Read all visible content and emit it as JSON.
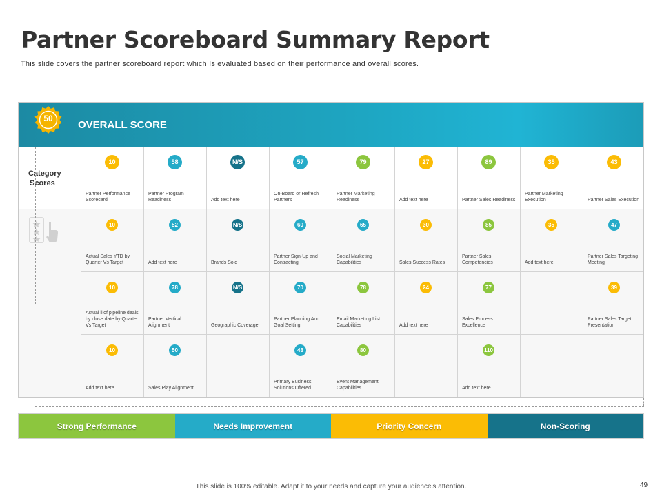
{
  "header": {
    "title": "Partner Scoreboard Summary Report",
    "subtitle": "This slide covers the partner scoreboard report which Is evaluated  based on their performance  and overall  scores."
  },
  "overall": {
    "label": "OVERALL SCORE",
    "score": "50",
    "badge_color": "#f5b400"
  },
  "category_label_line1": "Category",
  "category_label_line2": "Scores",
  "colors": {
    "green": "#8cc63e",
    "cyan": "#25abc8",
    "yellow": "#fbbc05",
    "teal": "#16738a"
  },
  "rows": [
    [
      {
        "value": "10",
        "status": "yellow",
        "desc": "Partner Performance Scorecard"
      },
      {
        "value": "58",
        "status": "cyan",
        "desc": "Partner Program Readiness"
      },
      {
        "value": "N/S",
        "status": "teal",
        "desc": "Add text here"
      },
      {
        "value": "57",
        "status": "cyan",
        "desc": "On-Board or Refresh Partners"
      },
      {
        "value": "79",
        "status": "green",
        "desc": "Partner Marketing Readiness"
      },
      {
        "value": "27",
        "status": "yellow",
        "desc": "Add text here"
      },
      {
        "value": "89",
        "status": "green",
        "desc": "Partner Sales Readiness"
      },
      {
        "value": "35",
        "status": "yellow",
        "desc": "Partner Marketing Execution"
      },
      {
        "value": "43",
        "status": "yellow",
        "desc": "Partner Sales Execution"
      }
    ],
    [
      {
        "value": "10",
        "status": "yellow",
        "desc": "Actual Sales YTD by Quarter Vs Target"
      },
      {
        "value": "52",
        "status": "cyan",
        "desc": "Add text here"
      },
      {
        "value": "N/S",
        "status": "teal",
        "desc": "Brands  Sold"
      },
      {
        "value": "60",
        "status": "cyan",
        "desc": "Partner Sign-Up and Contracting"
      },
      {
        "value": "65",
        "status": "cyan",
        "desc": "Social Marketing Capabilities"
      },
      {
        "value": "30",
        "status": "yellow",
        "desc": "Sales Success Rates"
      },
      {
        "value": "85",
        "status": "green",
        "desc": "Partner Sales Competencies"
      },
      {
        "value": "35",
        "status": "yellow",
        "desc": "Add text here"
      },
      {
        "value": "47",
        "status": "cyan",
        "desc": "Partner Sales Targeting Meeting"
      }
    ],
    [
      {
        "value": "10",
        "status": "yellow",
        "desc": "Actual illof pipeline deals by close date by Quarter Vs Target"
      },
      {
        "value": "78",
        "status": "cyan",
        "desc": "Partner Vertical Alignment"
      },
      {
        "value": "N/S",
        "status": "teal",
        "desc": "Geographic  Coverage"
      },
      {
        "value": "70",
        "status": "cyan",
        "desc": "Partner Planning And Goal Setting"
      },
      {
        "value": "78",
        "status": "green",
        "desc": "Email Marketing List Capabilities"
      },
      {
        "value": "24",
        "status": "yellow",
        "desc": "Add text here"
      },
      {
        "value": "77",
        "status": "green",
        "desc": "Sales Process Excellence"
      },
      null,
      {
        "value": "39",
        "status": "yellow",
        "desc": "Partner Sales Target Presentation"
      }
    ],
    [
      {
        "value": "10",
        "status": "yellow",
        "desc": "Add text here"
      },
      {
        "value": "50",
        "status": "cyan",
        "desc": "Sales Play Alignment"
      },
      null,
      {
        "value": "48",
        "status": "cyan",
        "desc": "Primary Business Solutions Offered"
      },
      {
        "value": "80",
        "status": "green",
        "desc": "Event Management Capabilities"
      },
      null,
      {
        "value": "110",
        "status": "green",
        "desc": "Add text here"
      },
      null,
      null
    ]
  ],
  "legend": [
    {
      "label": "Strong Performance",
      "color": "#8cc63e"
    },
    {
      "label": "Needs Improvement",
      "color": "#25abc8"
    },
    {
      "label": "Priority Concern",
      "color": "#fbbc05"
    },
    {
      "label": "Non-Scoring",
      "color": "#16738a"
    }
  ],
  "footer": {
    "note": "This slide is 100% editable.  Adapt it to your needs and capture your audience's attention.",
    "page_number": "49"
  }
}
